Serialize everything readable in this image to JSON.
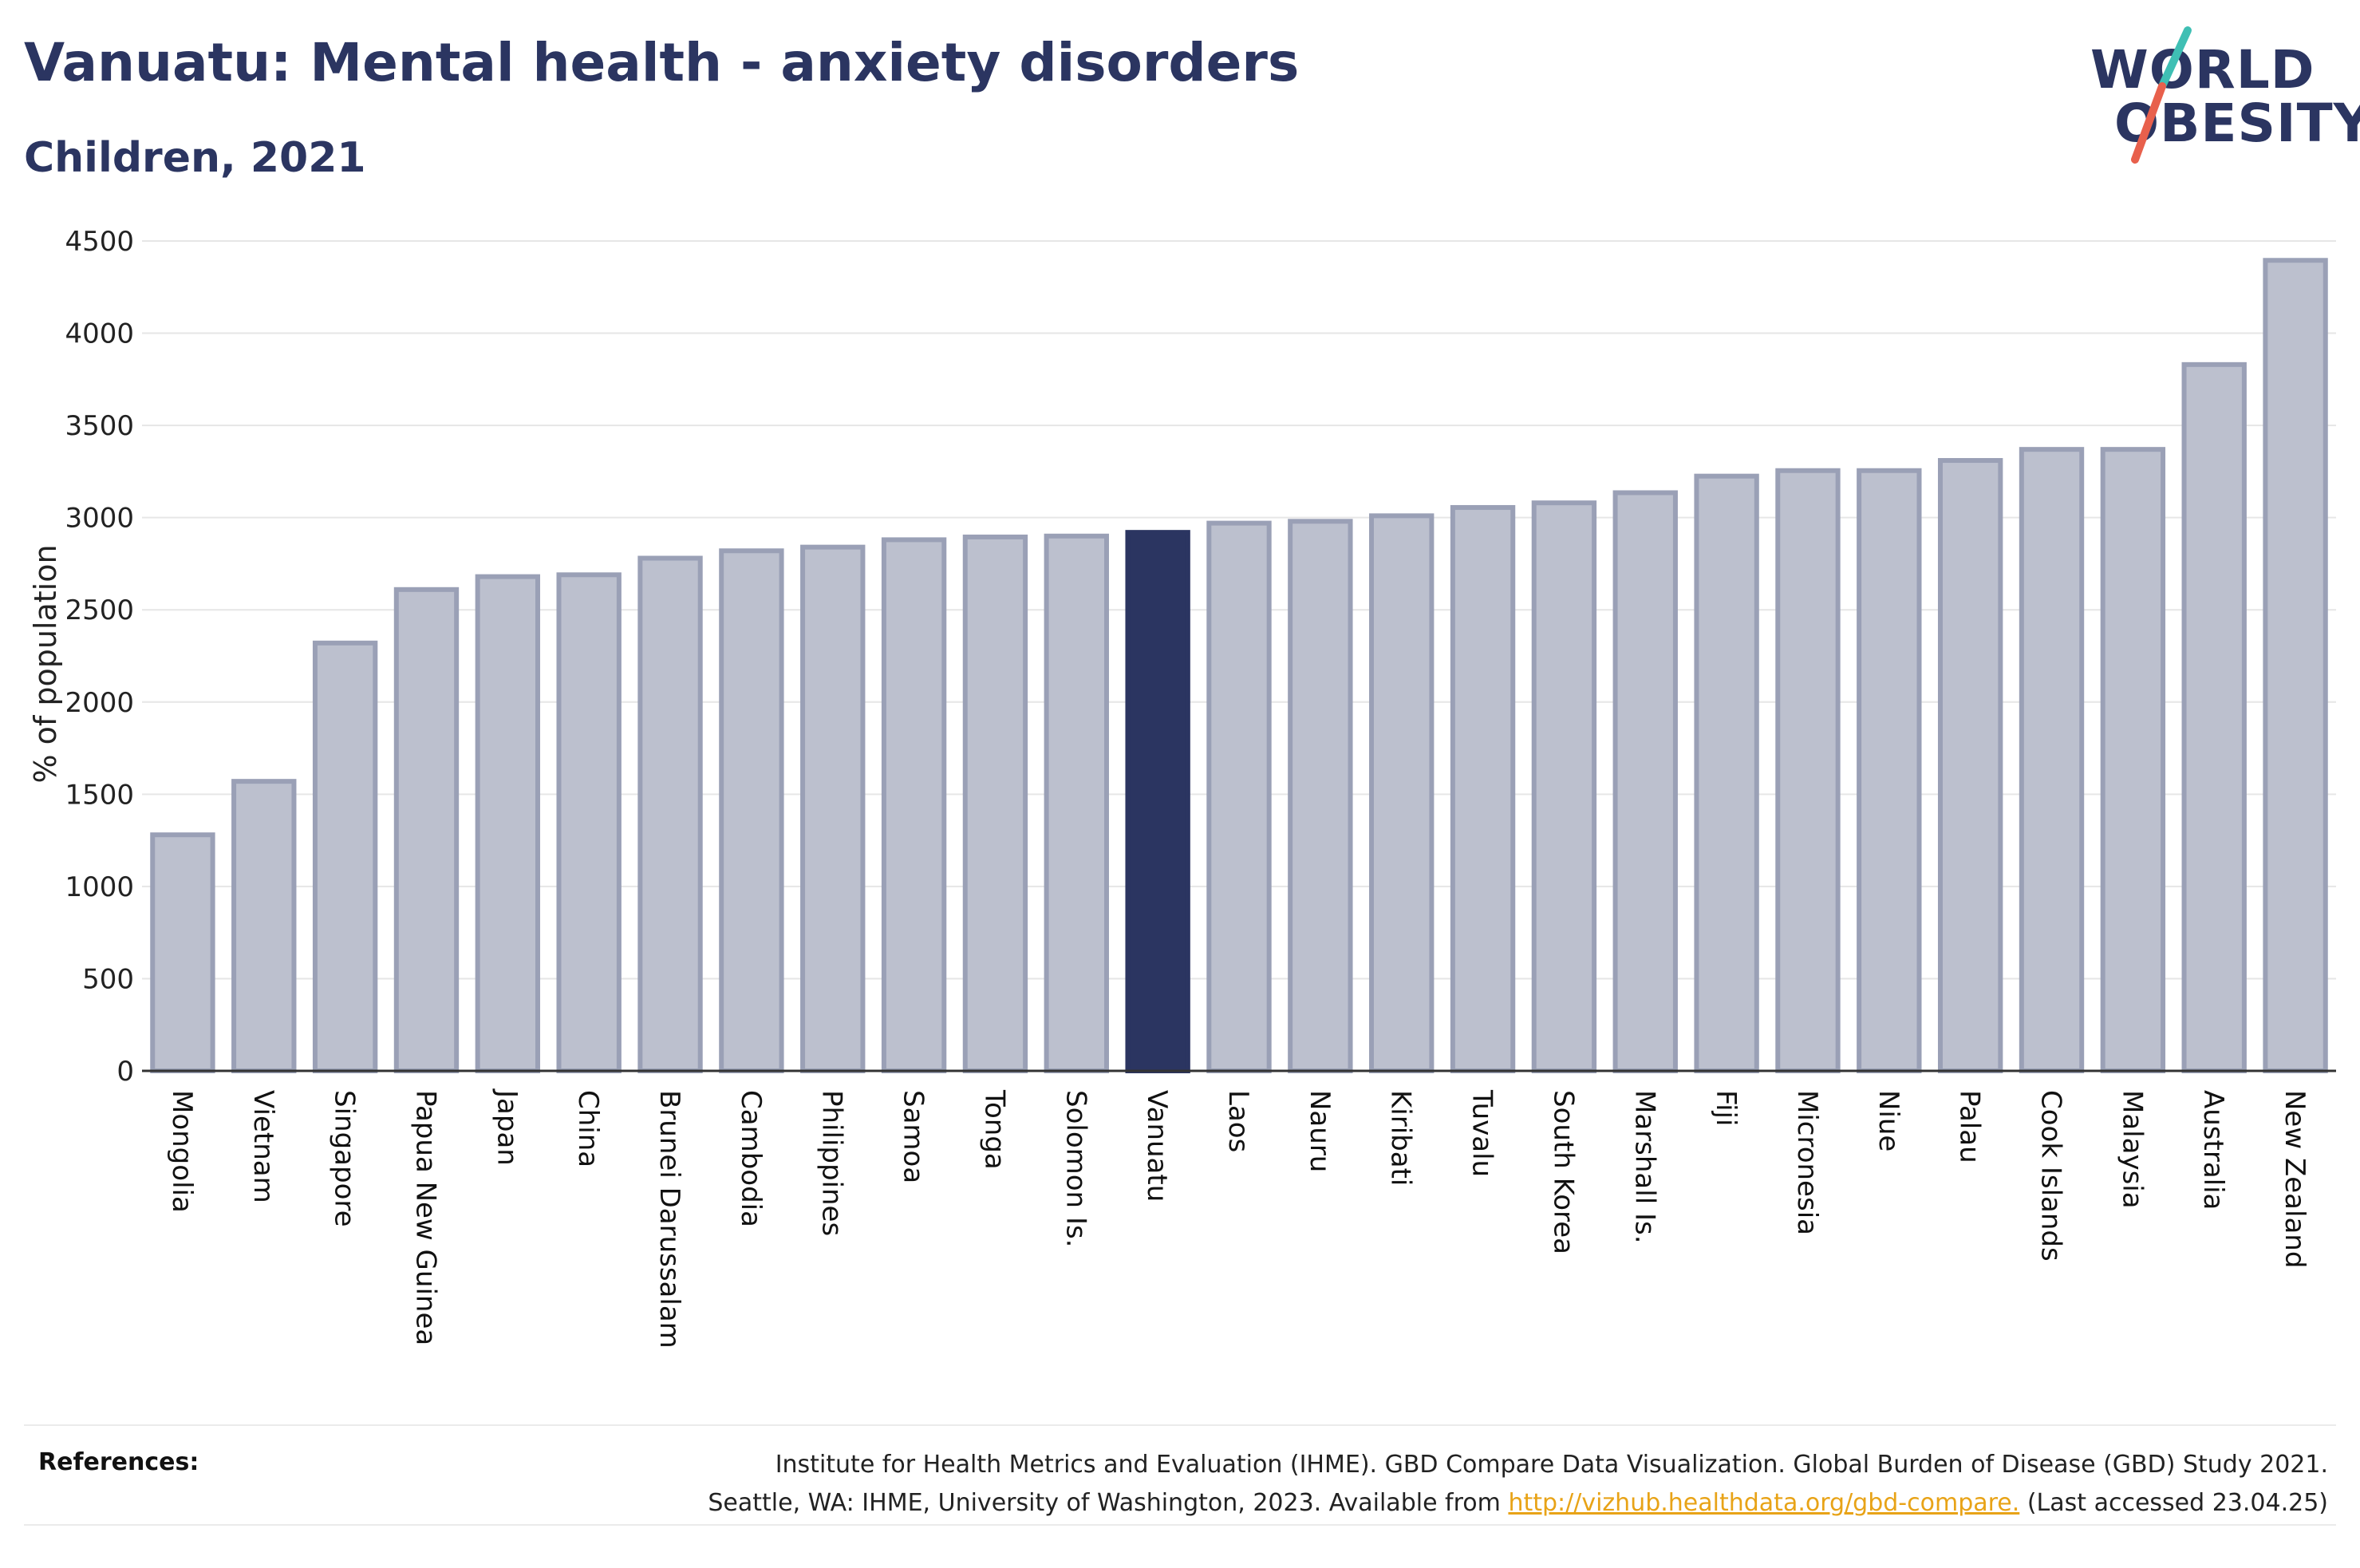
{
  "header": {
    "title": "Vanuatu: Mental health - anxiety disorders",
    "subtitle": "Children, 2021"
  },
  "logo": {
    "line1": "WORLD",
    "line2": "OBESITY",
    "slash_colors": [
      "#3fbfb4",
      "#e8604c"
    ]
  },
  "colors": {
    "highlight": "#2b3561",
    "bar_fill": "#bcc0ce",
    "bar_stroke": "#9aa0b6",
    "grid": "#e6e6e6",
    "axis": "#333333"
  },
  "chart_data": {
    "type": "bar",
    "title": "Vanuatu: Mental health - anxiety disorders",
    "subtitle": "Children, 2021",
    "xlabel": "",
    "ylabel": "% of population",
    "ylim": [
      0,
      4500
    ],
    "yticks": [
      0,
      500,
      1000,
      1500,
      2000,
      2500,
      3000,
      3500,
      4000,
      4500
    ],
    "grid": true,
    "highlight": "Vanuatu",
    "categories": [
      "Mongolia",
      "Vietnam",
      "Singapore",
      "Papua New Guinea",
      "Japan",
      "China",
      "Brunei Darussalam",
      "Cambodia",
      "Philippines",
      "Samoa",
      "Tonga",
      "Solomon Is.",
      "Vanuatu",
      "Laos",
      "Nauru",
      "Kiribati",
      "Tuvalu",
      "South Korea",
      "Marshall Is.",
      "Fiji",
      "Micronesia",
      "Niue",
      "Palau",
      "Cook Islands",
      "Malaysia",
      "Australia",
      "New Zealand"
    ],
    "values": [
      1280,
      1570,
      2320,
      2610,
      2680,
      2690,
      2780,
      2820,
      2840,
      2880,
      2895,
      2900,
      2920,
      2970,
      2980,
      3010,
      3055,
      3080,
      3135,
      3225,
      3255,
      3255,
      3310,
      3370,
      3370,
      3830,
      4395
    ]
  },
  "references": {
    "label": "References:",
    "line1": "Institute for Health Metrics and Evaluation (IHME). GBD Compare Data Visualization. Global Burden of Disease (GBD) Study 2021.",
    "line2_prefix": "Seattle, WA: IHME, University of Washington, 2023. Available from",
    "link_text": "http://vizhub.healthdata.org/gbd-compare.",
    "line2_suffix": "(Last accessed 23.04.25)"
  }
}
